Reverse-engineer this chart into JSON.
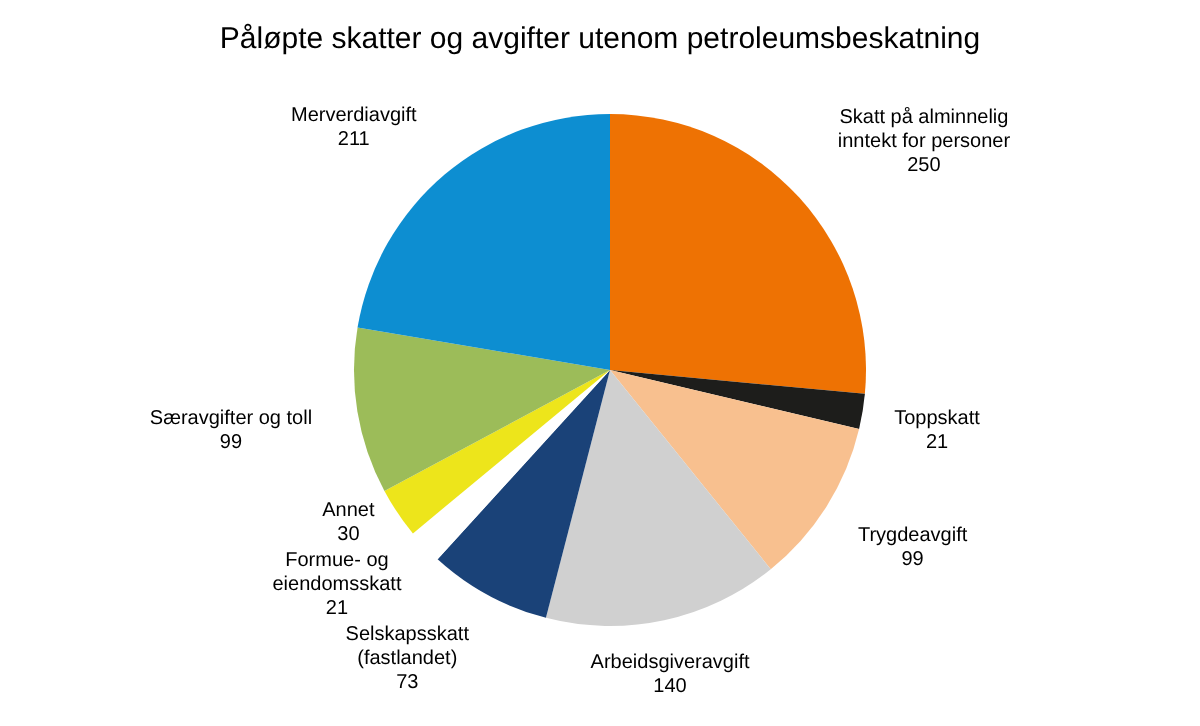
{
  "chart_data": {
    "type": "pie",
    "title": "Påløpte skatter og avgifter utenom petroleumsbeskatning",
    "categories": [
      "Skatt på alminnelig\ninntekt for personer",
      "Toppskatt",
      "Trygdeavgift",
      "Arbeidsgiveravgift",
      "Selskapsskatt\n(fastlandet)",
      "Formue- og\neiendomsskatt",
      "Annet",
      "Særavgifter og toll",
      "Merverdiavgift"
    ],
    "values": [
      250,
      21,
      99,
      140,
      73,
      21,
      30,
      99,
      211
    ],
    "colors": [
      "#ee7203",
      "#1d1d1b",
      "#f8c08f",
      "#d0d0d0",
      "#1a4278",
      "#ffffff",
      "#ede51b",
      "#9cbc59",
      "#0d8ed1"
    ],
    "data_labels": true
  }
}
